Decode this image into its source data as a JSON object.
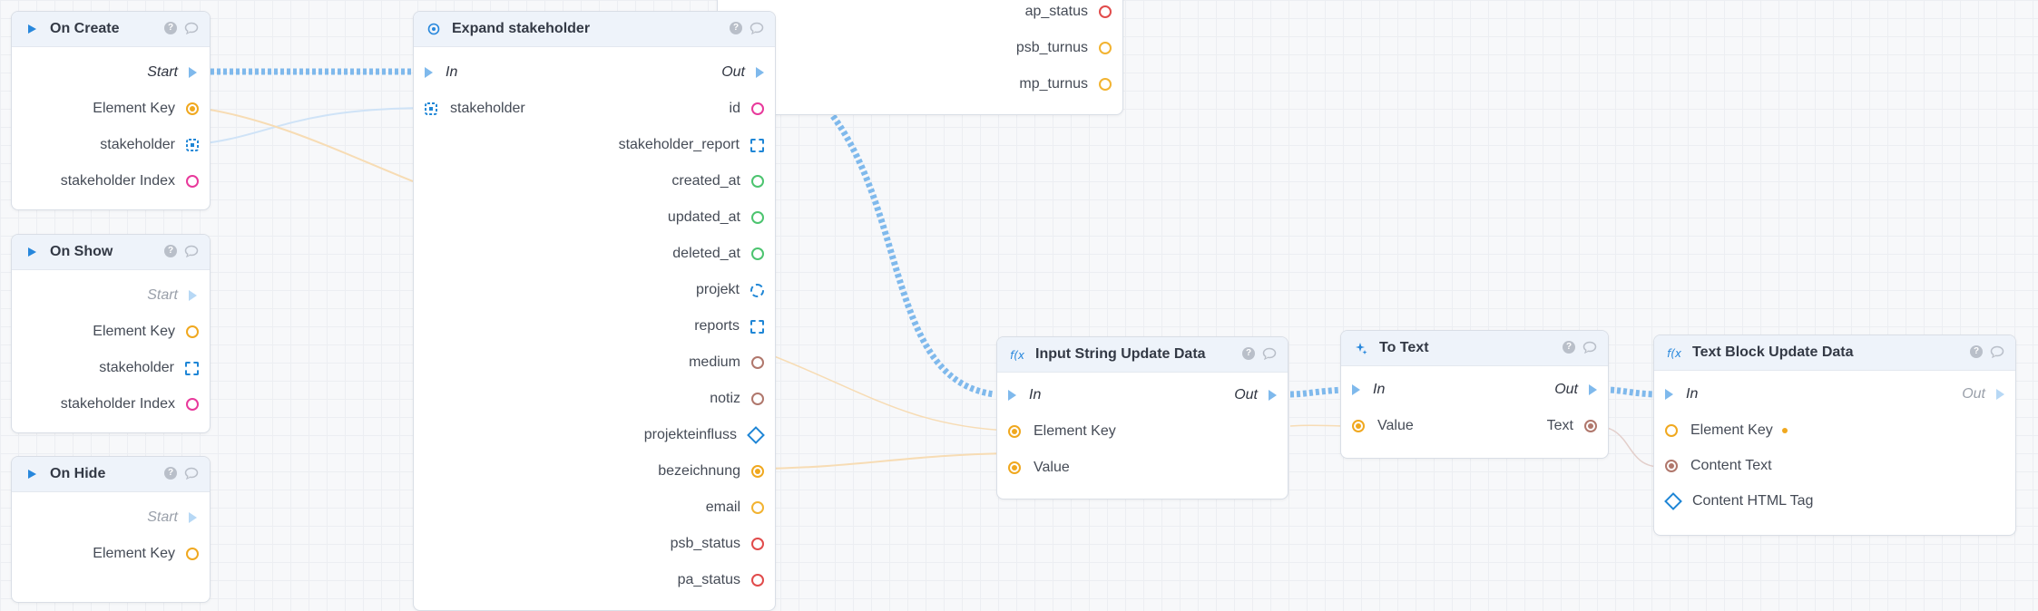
{
  "colors": {
    "exec": "#7fb9ec",
    "orange": "#f0a81f",
    "pink": "#e8399b",
    "green": "#4cc46f",
    "red": "#e14b4b",
    "brown": "#b0776c",
    "blue": "#1f86d6",
    "yellow": "#f2b331"
  },
  "nodes": {
    "on_create": {
      "title": "On Create",
      "start": "Start",
      "element_key": "Element Key",
      "stakeholder": "stakeholder",
      "stakeholder_index": "stakeholder Index"
    },
    "on_show": {
      "title": "On Show",
      "start": "Start",
      "element_key": "Element Key",
      "stakeholder": "stakeholder",
      "stakeholder_index": "stakeholder Index"
    },
    "on_hide": {
      "title": "On Hide",
      "start": "Start",
      "element_key": "Element Key"
    },
    "expand": {
      "title": "Expand stakeholder",
      "in": "In",
      "out": "Out",
      "input_stakeholder": "stakeholder",
      "outputs": [
        "id",
        "stakeholder_report",
        "created_at",
        "updated_at",
        "deleted_at",
        "projekt",
        "reports",
        "medium",
        "notiz",
        "projekteinfluss",
        "bezeichnung",
        "email",
        "psb_status",
        "pa_status"
      ]
    },
    "upper": {
      "outputs": [
        "ap_status",
        "psb_turnus",
        "mp_turnus"
      ]
    },
    "input_string": {
      "title": "Input String Update Data",
      "in": "In",
      "out": "Out",
      "element_key": "Element Key",
      "value": "Value"
    },
    "to_text": {
      "title": "To Text",
      "in": "In",
      "out": "Out",
      "value": "Value",
      "text": "Text"
    },
    "text_block": {
      "title": "Text Block Update Data",
      "in": "In",
      "out": "Out",
      "element_key": "Element Key",
      "content_text": "Content Text",
      "content_html_tag": "Content HTML Tag"
    }
  },
  "icons": {
    "play": "play-icon",
    "expand": "expand-icon",
    "function": "function-icon",
    "sparkle": "sparkle-icon",
    "help": "help-icon",
    "comment": "comment-icon",
    "help_glyph": "?"
  }
}
